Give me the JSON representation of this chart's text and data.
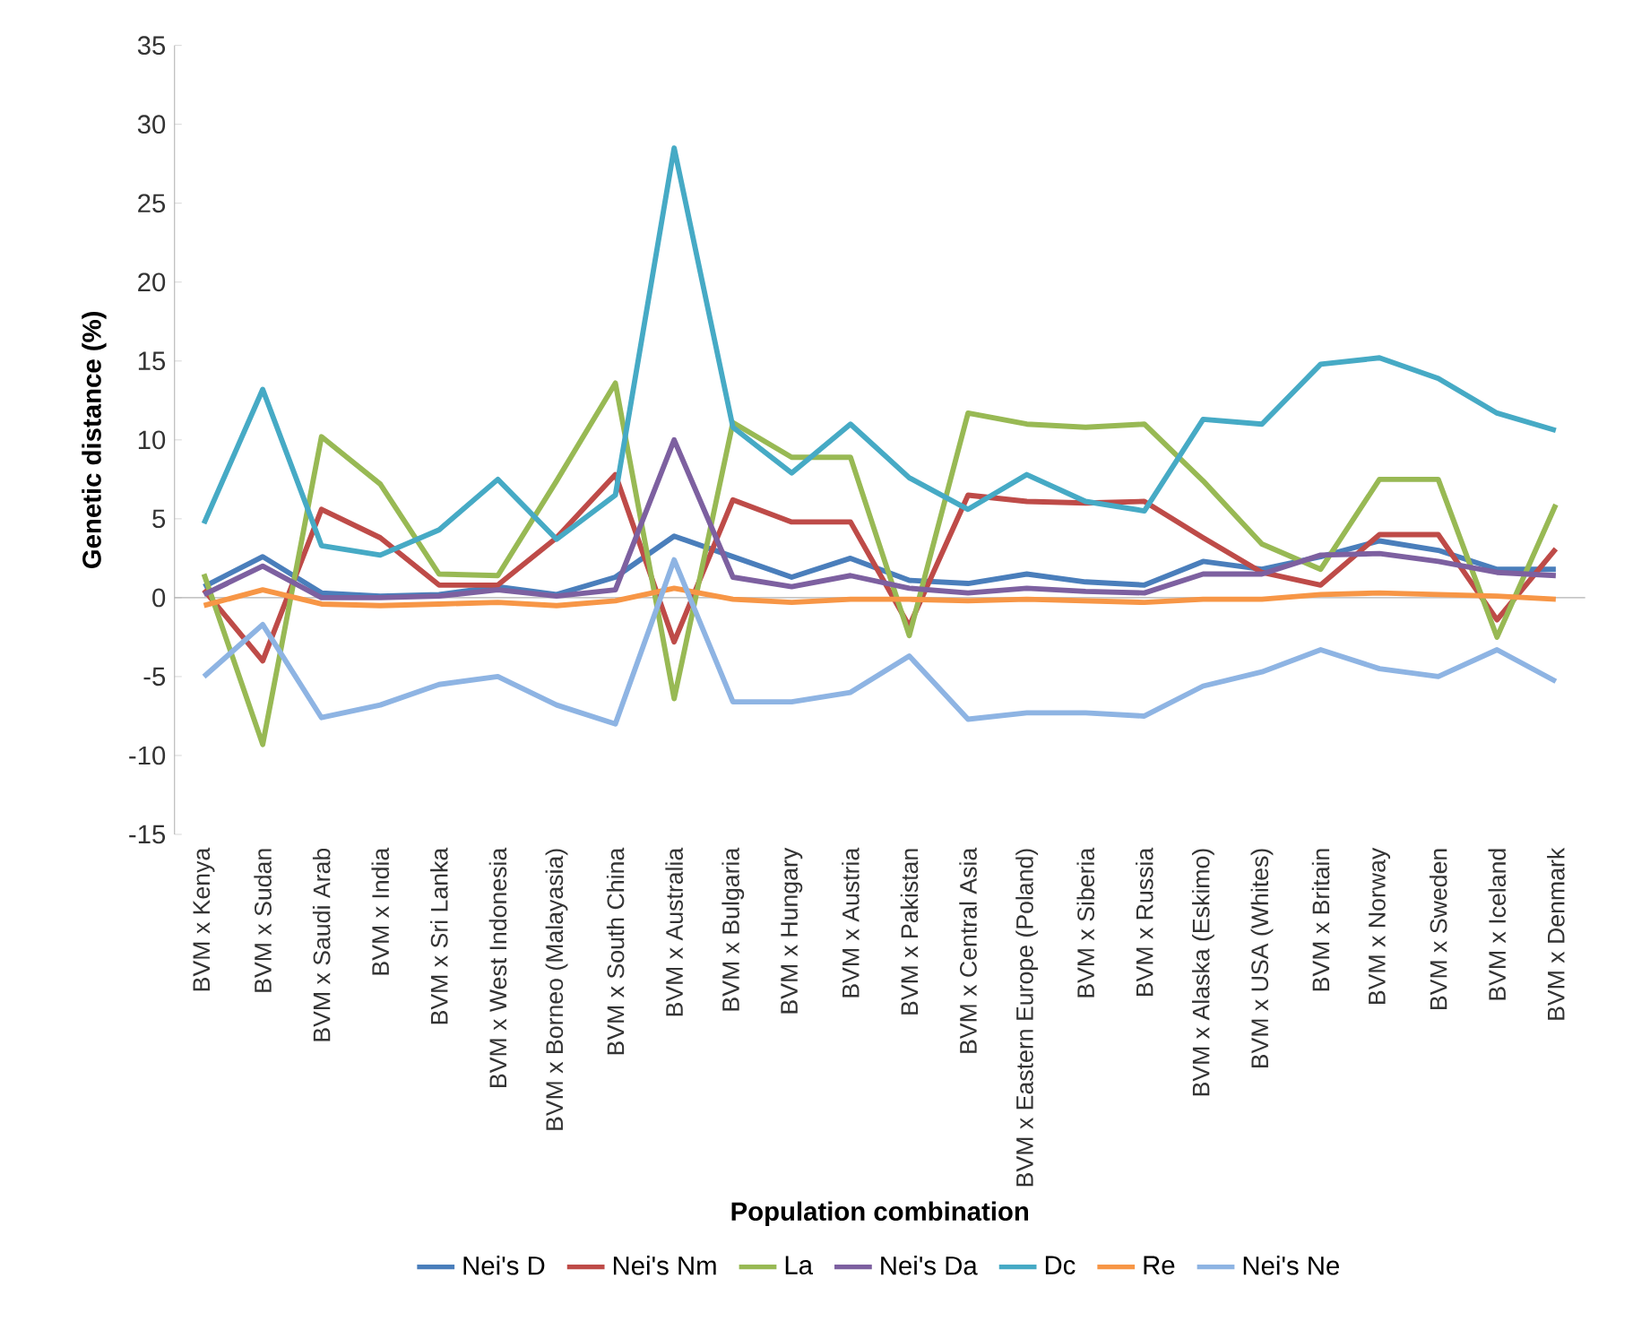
{
  "chart_data": {
    "type": "line",
    "xlabel": "Population combination",
    "ylabel": "Genetic distance (%)",
    "categories": [
      "BVM x Kenya",
      "BVM x Sudan",
      "BVM x Saudi Arab",
      "BVM x India",
      "BVM x Sri Lanka",
      "BVM x West Indonesia",
      "BVM  x Borneo (Malayasia)",
      "BVM  x South China",
      "BVM x Australia",
      "BVM x Bulgaria",
      "BVM x Hungary",
      "BVM x Austria",
      "BVM x Pakistan",
      "BVM x Central Asia",
      "BVM x  Eastern Europe (Poland)",
      "BVM x Siberia",
      "BVM x Russia",
      "BVM x Alaska (Eskimo)",
      "BVM x USA (Whites)",
      "BVM x Britain",
      "BVM x Norway",
      "BVM x Sweden",
      "BVM x Iceland",
      "BVM x Denmark"
    ],
    "ylim": [
      -15,
      35
    ],
    "yticks": [
      -15,
      -10,
      -5,
      0,
      5,
      10,
      15,
      20,
      25,
      30,
      35
    ],
    "legend": "bottom",
    "marker": "none",
    "line_style": "solid",
    "series": [
      {
        "name": "Nei's D",
        "color": "#4a7ebb",
        "values": [
          0.7,
          2.6,
          0.3,
          0.1,
          0.2,
          0.7,
          0.2,
          1.3,
          3.9,
          2.6,
          1.3,
          2.5,
          1.1,
          0.9,
          1.5,
          1.0,
          0.8,
          2.3,
          1.8,
          2.6,
          3.6,
          3.0,
          1.8,
          1.8
        ]
      },
      {
        "name": "Nei's Nm",
        "color": "#be4b48",
        "values": [
          0.5,
          -4.0,
          5.6,
          3.8,
          0.8,
          0.8,
          3.8,
          7.8,
          -2.8,
          6.2,
          4.8,
          4.8,
          -1.8,
          6.5,
          6.1,
          6.0,
          6.1,
          3.8,
          1.6,
          0.8,
          4.0,
          4.0,
          -1.4,
          3.1
        ]
      },
      {
        "name": "La",
        "color": "#98b954",
        "values": [
          1.5,
          -9.3,
          10.2,
          7.2,
          1.5,
          1.4,
          7.4,
          13.6,
          -6.4,
          11.1,
          8.9,
          8.9,
          -2.4,
          11.7,
          11.0,
          10.8,
          11.0,
          7.4,
          3.4,
          1.8,
          7.5,
          7.5,
          -2.5,
          5.9
        ]
      },
      {
        "name": "Nei's Da",
        "color": "#7d60a0",
        "values": [
          0.2,
          2.0,
          0.0,
          0.0,
          0.1,
          0.5,
          0.1,
          0.5,
          10.0,
          1.3,
          0.7,
          1.4,
          0.6,
          0.3,
          0.6,
          0.4,
          0.3,
          1.5,
          1.5,
          2.7,
          2.8,
          2.3,
          1.6,
          1.4
        ]
      },
      {
        "name": "Dc",
        "color": "#46aac5",
        "values": [
          4.7,
          13.2,
          3.3,
          2.7,
          4.3,
          7.5,
          3.7,
          6.5,
          28.5,
          10.8,
          7.9,
          11.0,
          7.6,
          5.6,
          7.8,
          6.1,
          5.5,
          11.3,
          11.0,
          14.8,
          15.2,
          13.9,
          11.7,
          10.6
        ]
      },
      {
        "name": "Re",
        "color": "#f79646",
        "values": [
          -0.5,
          0.5,
          -0.4,
          -0.5,
          -0.4,
          -0.3,
          -0.5,
          -0.2,
          0.6,
          -0.1,
          -0.3,
          -0.1,
          -0.1,
          -0.2,
          -0.1,
          -0.2,
          -0.3,
          -0.1,
          -0.1,
          0.2,
          0.3,
          0.2,
          0.1,
          -0.1
        ]
      },
      {
        "name": "Nei's Ne",
        "color": "#8eb4e3",
        "values": [
          -5.0,
          -1.7,
          -7.6,
          -6.8,
          -5.5,
          -5.0,
          -6.8,
          -8.0,
          2.4,
          -6.6,
          -6.6,
          -6.0,
          -3.7,
          -7.7,
          -7.3,
          -7.3,
          -7.5,
          -5.6,
          -4.7,
          -3.3,
          -4.5,
          -5.0,
          -3.3,
          -5.3
        ]
      }
    ]
  }
}
